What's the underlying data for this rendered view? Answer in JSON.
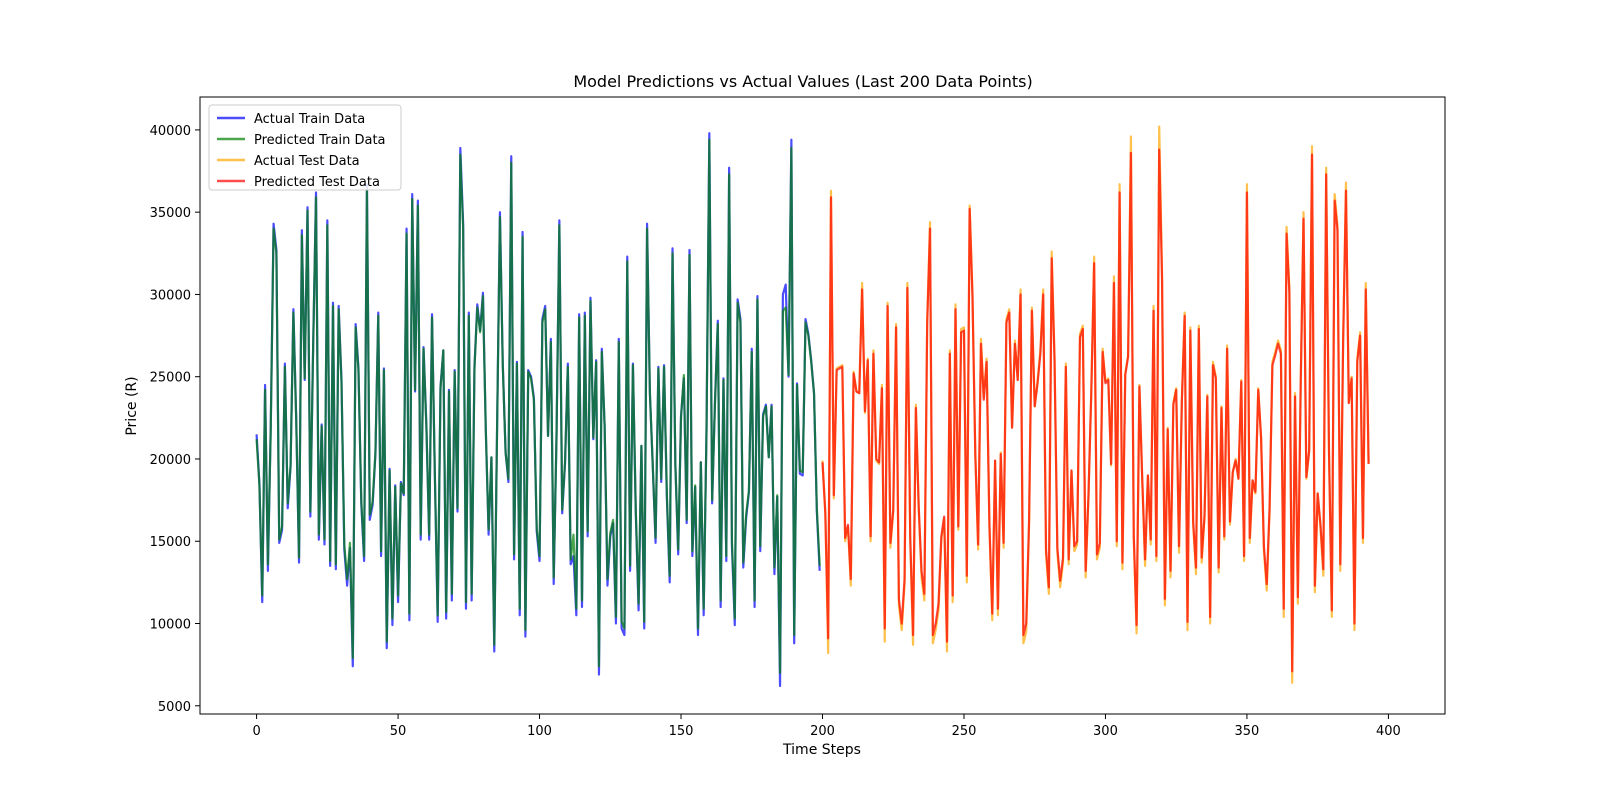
{
  "chart_data": {
    "type": "line",
    "title": "Model Predictions vs Actual Values (Last 200 Data Points)",
    "xlabel": "Time Steps",
    "ylabel": "Price (R)",
    "xlim": [
      -20,
      420
    ],
    "ylim": [
      4500,
      42000
    ],
    "xticks": [
      0,
      50,
      100,
      150,
      200,
      250,
      300,
      350,
      400
    ],
    "yticks": [
      5000,
      10000,
      15000,
      20000,
      25000,
      30000,
      35000,
      40000
    ],
    "legend_position": "top-left",
    "grid": false,
    "series": [
      {
        "name": "Actual Train Data",
        "color": "#0000ff",
        "x_start": 0,
        "values": [
          21500,
          18500,
          11300,
          24500,
          13200,
          22000,
          34300,
          32700,
          14900,
          15700,
          25800,
          17000,
          19500,
          29100,
          22500,
          13700,
          33900,
          24800,
          35300,
          16500,
          27000,
          36200,
          15100,
          22100,
          14800,
          34500,
          13500,
          29500,
          13300,
          29300,
          24800,
          14500,
          12300,
          14600,
          7400,
          28200,
          25500,
          17300,
          13800,
          36700,
          16300,
          17200,
          20300,
          28900,
          14100,
          25500,
          8500,
          19400,
          9900,
          18400,
          11300,
          18600,
          17800,
          34000,
          10200,
          36100,
          24100,
          35700,
          15100,
          26800,
          22100,
          15100,
          28800,
          19000,
          10100,
          24400,
          26600,
          10300,
          24200,
          11400,
          25400,
          16800,
          38900,
          34300,
          10900,
          28900,
          11400,
          25600,
          29400,
          27800,
          30100,
          21800,
          15400,
          20100,
          8300,
          22000,
          35000,
          25800,
          20400,
          18600,
          38400,
          13900,
          25900,
          10500,
          33800,
          9200,
          25400,
          25000,
          23700,
          15600,
          13800,
          28500,
          29300,
          21400,
          27300,
          12400,
          21400,
          34500,
          16700,
          19700,
          25800,
          13600,
          14100,
          10500,
          28800,
          11000,
          28900,
          15300,
          29800,
          21200,
          26000,
          6900,
          26700,
          22000,
          12300,
          15300,
          16100,
          10000,
          27300,
          9700,
          9300,
          32300,
          13200,
          25800,
          16800,
          10800,
          20800,
          9700,
          34300,
          24000,
          19600,
          14900,
          25600,
          18600,
          25700,
          17600,
          12500,
          32800,
          19600,
          14200,
          22600,
          24900,
          16100,
          32700,
          14100,
          18300,
          9300,
          19800,
          10500,
          21700,
          39800,
          17300,
          23500,
          28400,
          11000,
          24900,
          13800,
          37700,
          14700,
          9900,
          29700,
          28500,
          13400,
          16400,
          18000,
          26700,
          11000,
          29900,
          14400,
          22700,
          23300,
          20100,
          23300,
          13000,
          17700,
          6200,
          30000,
          30600,
          25000,
          39400,
          8800,
          24600,
          19100,
          19000,
          28500,
          27600,
          26000,
          24000,
          16800,
          13200
        ]
      },
      {
        "name": "Predicted Train Data",
        "color": "#008000",
        "x_start": 0,
        "values": [
          21200,
          18400,
          11700,
          24200,
          13600,
          21800,
          34000,
          32500,
          15100,
          15900,
          25600,
          17300,
          19600,
          28900,
          22400,
          14000,
          33600,
          24900,
          35100,
          16800,
          26900,
          35900,
          15400,
          22000,
          15100,
          34200,
          13800,
          29300,
          13600,
          29100,
          24700,
          14800,
          12700,
          14900,
          7900,
          28000,
          25400,
          17500,
          14100,
          36400,
          16600,
          17400,
          20400,
          28700,
          14400,
          25400,
          8900,
          19300,
          10300,
          18300,
          11700,
          18500,
          17900,
          33700,
          10600,
          35800,
          24200,
          35400,
          15400,
          26700,
          22000,
          15400,
          28600,
          19100,
          10500,
          24300,
          26600,
          10700,
          24100,
          11800,
          25300,
          17000,
          38500,
          34000,
          11300,
          28700,
          11800,
          25500,
          29200,
          27700,
          29900,
          21800,
          15700,
          20100,
          8700,
          21900,
          34700,
          25700,
          20400,
          18800,
          38000,
          14200,
          25800,
          10900,
          33500,
          9600,
          25300,
          24900,
          23600,
          15800,
          14100,
          28300,
          29100,
          21400,
          27100,
          12800,
          21400,
          34200,
          16900,
          19800,
          25600,
          13900,
          15400,
          10900,
          28600,
          11400,
          28700,
          15600,
          29600,
          21300,
          25900,
          7400,
          26500,
          22000,
          12700,
          15500,
          16300,
          10400,
          27100,
          10100,
          9700,
          32000,
          13500,
          25700,
          17000,
          11200,
          20800,
          10100,
          34000,
          24000,
          19700,
          15200,
          25500,
          18800,
          25600,
          17800,
          12900,
          32500,
          19700,
          14500,
          22500,
          25100,
          16300,
          32400,
          14400,
          18400,
          9700,
          19800,
          10900,
          21600,
          39400,
          17500,
          23400,
          28200,
          11400,
          24800,
          14100,
          37300,
          15000,
          10300,
          29500,
          28300,
          13700,
          16600,
          18100,
          26500,
          11400,
          29700,
          14700,
          22600,
          23200,
          20100,
          23200,
          13400,
          17800,
          7000,
          29000,
          29200,
          25100,
          38900,
          9300,
          24500,
          19300,
          19200,
          28300,
          27500,
          25900,
          24000,
          17000,
          13500
        ]
      },
      {
        "name": "Actual Test Data",
        "color": "#ffa500",
        "x_start": 200,
        "values": [
          19900,
          16700,
          8200,
          36300,
          17600,
          25500,
          25600,
          25700,
          15000,
          15900,
          12300,
          25300,
          24100,
          24000,
          30700,
          22800,
          26100,
          15000,
          26600,
          19900,
          19700,
          24500,
          8900,
          29500,
          14600,
          16800,
          28200,
          11100,
          9600,
          12400,
          30700,
          15100,
          8700,
          23300,
          17000,
          12800,
          11400,
          28400,
          34400,
          8800,
          9600,
          10800,
          15100,
          16400,
          8300,
          26600,
          11300,
          29400,
          15700,
          27900,
          28000,
          12500,
          35400,
          30100,
          20300,
          14500,
          27300,
          23700,
          26100,
          15800,
          10200,
          19900,
          10500,
          20400,
          14600,
          28500,
          29100,
          21900,
          27200,
          24800,
          30300,
          8800,
          9500,
          16000,
          29200,
          23200,
          24700,
          26600,
          30300,
          14200,
          11800,
          32600,
          26200,
          14300,
          12200,
          13700,
          25800,
          13600,
          19300,
          14400,
          14800,
          27600,
          28100,
          12800,
          17700,
          24200,
          32300,
          13900,
          14600,
          26700,
          24700,
          24900,
          19600,
          31100,
          14700,
          36700,
          13300,
          25200,
          26300,
          39600,
          15200,
          9400,
          24500,
          18700,
          13500,
          19000,
          14800,
          29300,
          13800,
          40200,
          31200,
          11100,
          21900,
          12800,
          23400,
          24300,
          14300,
          23600,
          28900,
          9600,
          28000,
          16000,
          13000,
          28100,
          13700,
          16400,
          23900,
          10000,
          25900,
          25000,
          13100,
          23200,
          15100,
          26900,
          16000,
          19200,
          20000,
          18800,
          24800,
          13800,
          36700,
          14900,
          18700,
          17900,
          24300,
          21300,
          14400,
          12000,
          16900,
          25900,
          26500,
          27200,
          26600,
          10400,
          34100,
          30400,
          6400,
          24000,
          11200,
          24600,
          35000,
          18800,
          20500,
          39000,
          11900,
          17900,
          15800,
          12900,
          37700,
          20500,
          10400,
          36100,
          34200,
          13200,
          27300,
          36800,
          23400,
          25000,
          9600,
          26100,
          27700,
          14900,
          30700,
          19700
        ]
      },
      {
        "name": "Predicted Test Data",
        "color": "#ff0000",
        "x_start": 200,
        "values": [
          19800,
          16700,
          9100,
          35900,
          17800,
          25400,
          25500,
          25600,
          15200,
          16000,
          12700,
          25200,
          24100,
          24000,
          30300,
          22900,
          26000,
          15300,
          26400,
          20000,
          19800,
          24300,
          9700,
          29300,
          14900,
          16900,
          28000,
          11500,
          10000,
          12700,
          30400,
          15300,
          9300,
          23100,
          17100,
          13200,
          11800,
          28200,
          34000,
          9300,
          10000,
          11200,
          15300,
          16500,
          8900,
          26400,
          11700,
          29100,
          15900,
          27700,
          27800,
          12900,
          35200,
          29900,
          20300,
          14800,
          27000,
          23600,
          25900,
          16000,
          10600,
          19900,
          10900,
          20300,
          14900,
          28300,
          28900,
          21900,
          27000,
          24800,
          30000,
          9300,
          10000,
          16200,
          29000,
          23200,
          24600,
          26400,
          30000,
          14500,
          12200,
          32200,
          26000,
          14600,
          12600,
          14000,
          25600,
          13900,
          19300,
          14700,
          15000,
          27400,
          27900,
          13200,
          17800,
          24100,
          31900,
          14200,
          14900,
          26500,
          24600,
          24800,
          19700,
          30700,
          15000,
          36200,
          13700,
          25100,
          26200,
          38600,
          15400,
          9900,
          24400,
          18800,
          13900,
          19000,
          15100,
          29000,
          14100,
          38800,
          30900,
          11500,
          21800,
          13200,
          23300,
          24200,
          14700,
          23500,
          28700,
          10100,
          27800,
          16200,
          13400,
          27900,
          14000,
          16500,
          23800,
          10400,
          25700,
          24900,
          13400,
          23100,
          15300,
          26700,
          16200,
          19200,
          19900,
          18800,
          24700,
          14100,
          36200,
          15200,
          18700,
          18000,
          24200,
          21300,
          14700,
          12400,
          17000,
          25700,
          26300,
          27000,
          26400,
          10900,
          33700,
          30100,
          7100,
          23800,
          11600,
          24500,
          34600,
          18900,
          20500,
          38500,
          12300,
          17900,
          16000,
          13300,
          37300,
          20500,
          10800,
          35700,
          33900,
          13600,
          27100,
          36300,
          23400,
          24900,
          10000,
          25900,
          27500,
          15200,
          30300,
          19700
        ]
      }
    ]
  }
}
